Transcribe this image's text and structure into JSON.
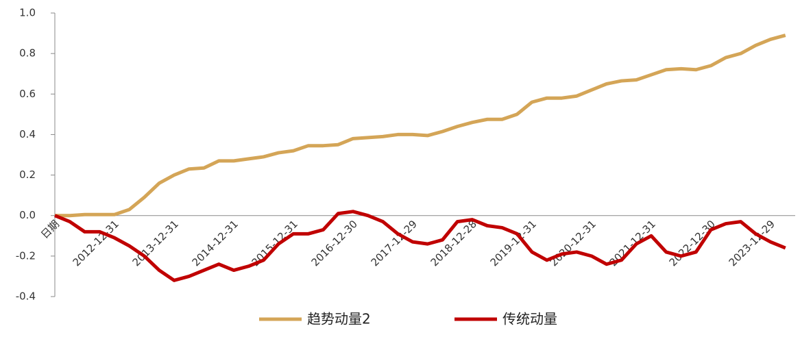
{
  "chart_data": {
    "type": "line",
    "categories": [
      "日期",
      null,
      null,
      null,
      "2012-12-31",
      null,
      null,
      null,
      "2013-12-31",
      null,
      null,
      null,
      "2014-12-31",
      null,
      null,
      null,
      "2015-12-31",
      null,
      null,
      null,
      "2016-12-30",
      null,
      null,
      null,
      "2017-12-29",
      null,
      null,
      null,
      "2018-12-28",
      null,
      null,
      null,
      "2019-12-31",
      null,
      null,
      null,
      "2020-12-31",
      null,
      null,
      null,
      "2021-12-31",
      null,
      null,
      null,
      "2022-12-30",
      null,
      null,
      null,
      "2023-12-29",
      null
    ],
    "series": [
      {
        "name": "趋势动量2",
        "color": "#D4A557",
        "values": [
          0.0,
          0.0,
          0.005,
          0.005,
          0.005,
          0.03,
          0.09,
          0.16,
          0.2,
          0.23,
          0.235,
          0.27,
          0.27,
          0.28,
          0.29,
          0.31,
          0.32,
          0.345,
          0.345,
          0.35,
          0.38,
          0.385,
          0.39,
          0.4,
          0.4,
          0.395,
          0.415,
          0.44,
          0.46,
          0.475,
          0.475,
          0.5,
          0.56,
          0.58,
          0.58,
          0.59,
          0.62,
          0.65,
          0.665,
          0.67,
          0.695,
          0.72,
          0.725,
          0.72,
          0.74,
          0.78,
          0.8,
          0.84,
          0.87,
          0.89
        ]
      },
      {
        "name": "传统动量",
        "color": "#C00000",
        "values": [
          0.0,
          -0.03,
          -0.08,
          -0.08,
          -0.11,
          -0.15,
          -0.2,
          -0.27,
          -0.32,
          -0.3,
          -0.27,
          -0.24,
          -0.27,
          -0.25,
          -0.22,
          -0.14,
          -0.09,
          -0.09,
          -0.07,
          0.01,
          0.02,
          0.0,
          -0.03,
          -0.09,
          -0.13,
          -0.14,
          -0.12,
          -0.03,
          -0.02,
          -0.05,
          -0.06,
          -0.09,
          -0.18,
          -0.22,
          -0.19,
          -0.18,
          -0.2,
          -0.24,
          -0.22,
          -0.14,
          -0.1,
          -0.18,
          -0.2,
          -0.18,
          -0.07,
          -0.04,
          -0.03,
          -0.09,
          -0.13,
          -0.16
        ]
      }
    ],
    "ylim": [
      -0.4,
      1.0
    ],
    "yticks": [
      {
        "value": 1,
        "label": "1.0"
      },
      0.8,
      0.6,
      0.4,
      0.2,
      {
        "value": 0,
        "label": "0.0"
      },
      -0.2,
      -0.4
    ],
    "grid": false
  }
}
